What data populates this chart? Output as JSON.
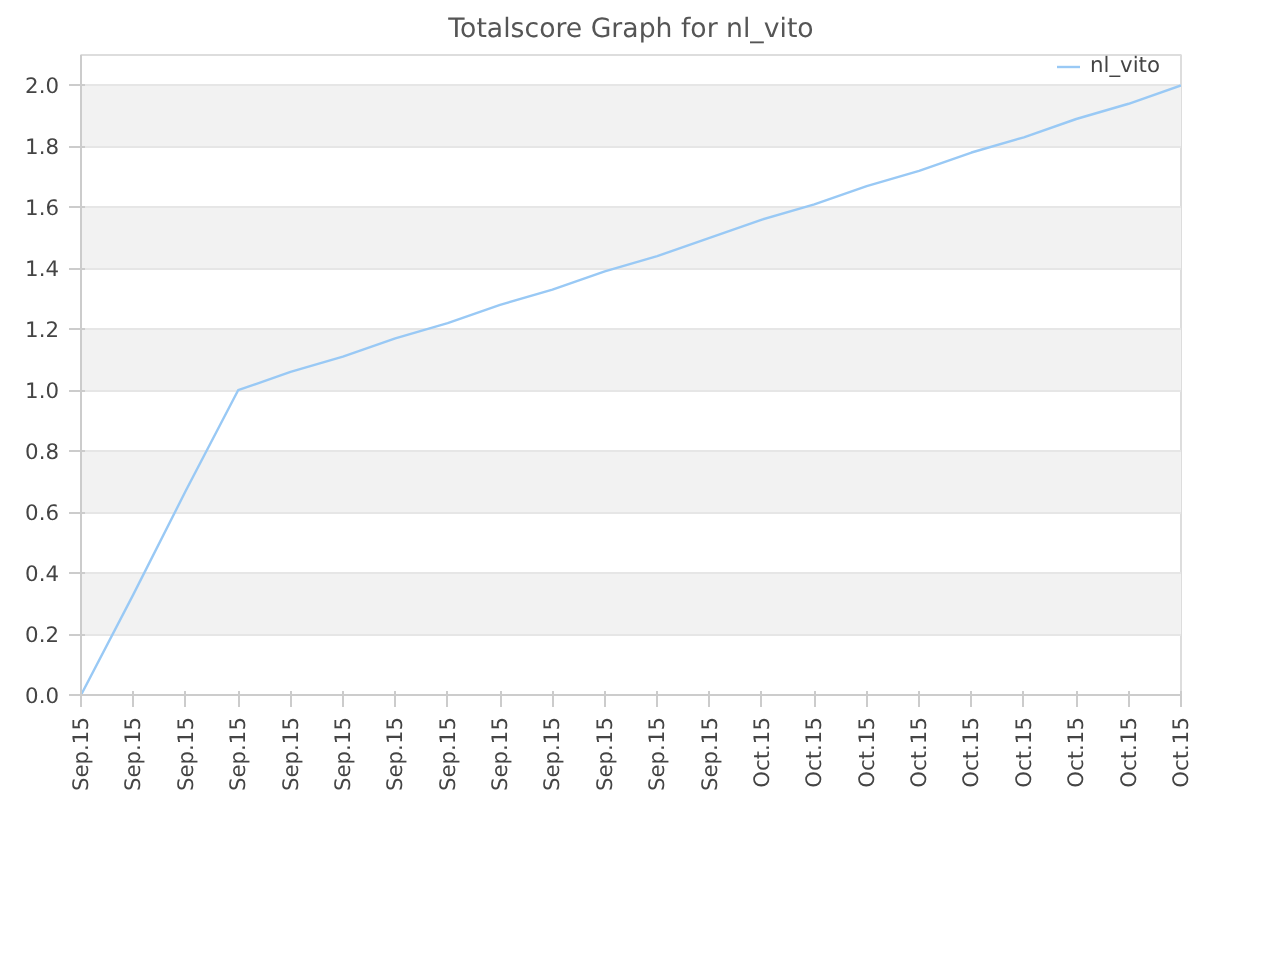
{
  "chart_data": {
    "type": "line",
    "title": "Totalscore Graph for nl_vito",
    "categories": [
      "Sep.15",
      "Sep.15",
      "Sep.15",
      "Sep.15",
      "Sep.15",
      "Sep.15",
      "Sep.15",
      "Sep.15",
      "Sep.15",
      "Sep.15",
      "Sep.15",
      "Sep.15",
      "Sep.15",
      "Oct.15",
      "Oct.15",
      "Oct.15",
      "Oct.15",
      "Oct.15",
      "Oct.15",
      "Oct.15",
      "Oct.15",
      "Oct.15"
    ],
    "series": [
      {
        "name": "nl_vito",
        "color": "#99c9f5",
        "values": [
          0,
          0.33,
          0.67,
          1.0,
          1.06,
          1.11,
          1.17,
          1.22,
          1.28,
          1.33,
          1.39,
          1.44,
          1.5,
          1.56,
          1.61,
          1.67,
          1.72,
          1.78,
          1.83,
          1.89,
          1.94,
          2.0
        ]
      }
    ],
    "ylim": [
      0,
      2.1
    ],
    "yticks": [
      {
        "value": 0,
        "label": "0.0"
      },
      0.2,
      0.4,
      0.6,
      0.8,
      {
        "value": 1,
        "label": "1.0"
      },
      1.2,
      1.4,
      1.6,
      1.8,
      {
        "value": 2,
        "label": "2.0"
      }
    ],
    "grid": "y",
    "legend": "top right",
    "line_style": "solid"
  }
}
